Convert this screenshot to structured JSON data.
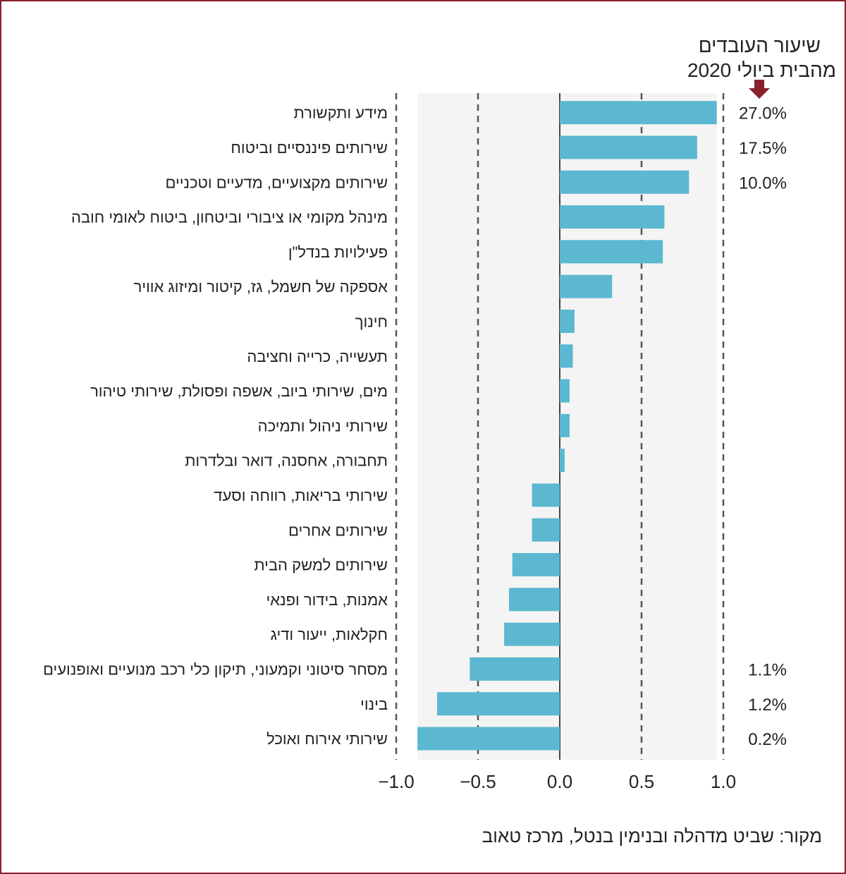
{
  "chart_data": {
    "type": "bar",
    "orientation": "horizontal",
    "header_lines": [
      "שיעור העובדים",
      "מהבית ביולי 2020"
    ],
    "source": "מקור: שביט מדהלה ובנימין בנטל, מרכז טאוב",
    "xlim": [
      -1.0,
      1.0
    ],
    "xticks": [
      "−1.0",
      "−0.5",
      "0.0",
      "0.5",
      "1.0"
    ],
    "xtick_values": [
      -1.0,
      -0.5,
      0.0,
      0.5,
      1.0
    ],
    "gridlines": "dashed at -1.0, -0.5, 0.5, 1.0",
    "categories": [
      "מידע ותקשורת",
      "שירותים פיננסיים וביטוח",
      "שירותים מקצועיים, מדעיים וטכניים",
      "מינהל מקומי או ציבורי וביטחון, ביטוח לאומי חובה",
      "פעילויות בנדל\"ן",
      "אספקה של חשמל, גז, קיטור ומיזוג אוויר",
      "חינוך",
      "תעשייה, כרייה וחציבה",
      "מים, שירותי ביוב, אשפה ופסולת, שירותי טיהור",
      "שירותי ניהול ותמיכה",
      "תחבורה, אחסנה, דואר ובלדרות",
      "שירותי בריאות, רווחה וסעד",
      "שירותים אחרים",
      "שירותים למשק הבית",
      "אמנות, בידור ופנאי",
      "חקלאות, ייעור ודיג",
      "מסחר סיטוני וקמעוני, תיקון כלי רכב מנועיים ואופנועים",
      "בינוי",
      "שירותי אירוח ואוכל"
    ],
    "values": [
      0.96,
      0.84,
      0.79,
      0.64,
      0.63,
      0.32,
      0.09,
      0.08,
      0.06,
      0.06,
      0.03,
      -0.17,
      -0.17,
      -0.29,
      -0.31,
      -0.34,
      -0.55,
      -0.75,
      -0.87
    ],
    "work_from_home_share": [
      "27.0%",
      "17.5%",
      "10.0%",
      "",
      "",
      "",
      "",
      "",
      "",
      "",
      "",
      "",
      "",
      "",
      "",
      "",
      "1.1%",
      "1.2%",
      "0.2%"
    ],
    "colors": {
      "bar": "#5bb8d0",
      "arrow": "#8b1f2c",
      "frame": "#8b1f2c",
      "grid": "#555555",
      "band": "#f4f4f4"
    }
  }
}
